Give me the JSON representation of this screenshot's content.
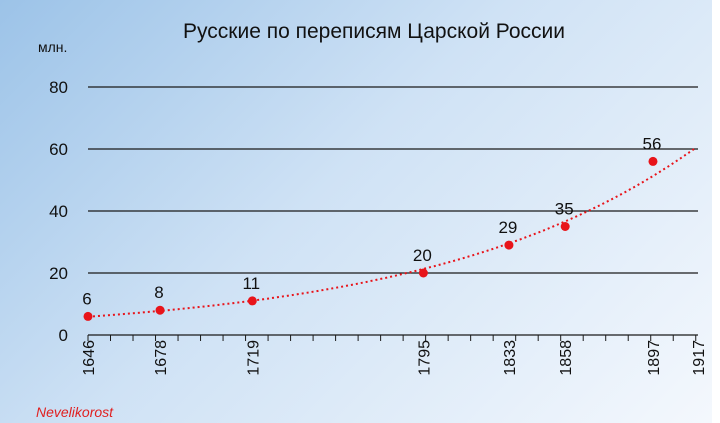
{
  "chart_data": {
    "type": "line",
    "title": "Русские  по переписям Царской России",
    "ylabel": "млн.",
    "xlim": [
      1646,
      1917
    ],
    "ylim": [
      0,
      80
    ],
    "y_ticks": [
      0,
      20,
      40,
      60,
      80
    ],
    "x_ticks": [
      1646,
      1678,
      1719,
      1795,
      1833,
      1858,
      1897,
      1917
    ],
    "grid": true,
    "series": [
      {
        "x": [
          1646,
          1678,
          1719,
          1795,
          1833,
          1858,
          1897
        ],
        "values": [
          6,
          8,
          11,
          20,
          29,
          35,
          56
        ],
        "data_labels": [
          "6",
          "8",
          "11",
          "20",
          "29",
          "35",
          "56"
        ],
        "color": "#e8141a",
        "trendline": "exponential",
        "trend_color": "#e8141a"
      }
    ],
    "watermark": "Nevelikorost"
  }
}
